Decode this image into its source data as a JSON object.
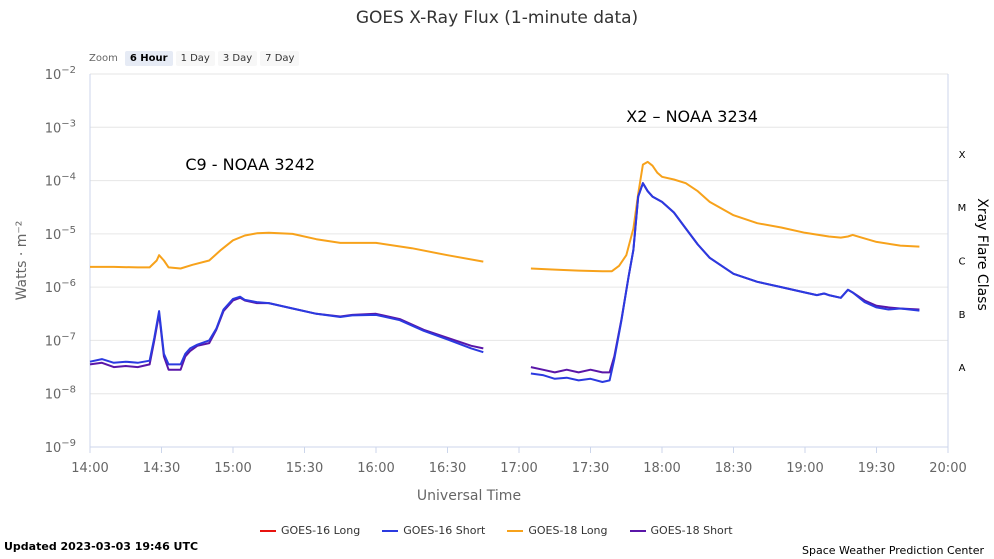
{
  "title": "GOES X-Ray Flux (1-minute data)",
  "zoom": {
    "label": "Zoom",
    "buttons": [
      "6 Hour",
      "1 Day",
      "3 Day",
      "7 Day"
    ],
    "active": "6 Hour"
  },
  "legend": [
    {
      "name": "GOES-16 Long",
      "color": "#e8130f"
    },
    {
      "name": "GOES-16 Short",
      "color": "#2b3ae0"
    },
    {
      "name": "GOES-18 Long",
      "color": "#f7a21b"
    },
    {
      "name": "GOES-18 Short",
      "color": "#5a16a8"
    }
  ],
  "updated": "Updated 2023-03-03 19:46 UTC",
  "credit": "Space Weather Prediction Center",
  "chart_data": {
    "type": "line",
    "title": "GOES X-Ray Flux (1-minute data)",
    "xlabel": "Universal Time",
    "ylabel": "Watts · m⁻²",
    "y2label": "Xray Flare Class",
    "yscale": "log",
    "xlim": [
      "14:00",
      "20:00"
    ],
    "ylim_exp": [
      -9,
      -2
    ],
    "x_ticks": [
      "14:00",
      "14:30",
      "15:00",
      "15:30",
      "16:00",
      "16:30",
      "17:00",
      "17:30",
      "18:00",
      "18:30",
      "19:00",
      "19:30",
      "20:00"
    ],
    "y_ticks": [
      {
        "base": "10",
        "exp": "−2",
        "value_exp": -2
      },
      {
        "base": "10",
        "exp": "−3",
        "value_exp": -3
      },
      {
        "base": "10",
        "exp": "−4",
        "value_exp": -4
      },
      {
        "base": "10",
        "exp": "−5",
        "value_exp": -5
      },
      {
        "base": "10",
        "exp": "−6",
        "value_exp": -6
      },
      {
        "base": "10",
        "exp": "−7",
        "value_exp": -7
      },
      {
        "base": "10",
        "exp": "−8",
        "value_exp": -8
      },
      {
        "base": "10",
        "exp": "−9",
        "value_exp": -9
      }
    ],
    "flare_classes": [
      {
        "label": "X",
        "value_exp": -3.5
      },
      {
        "label": "M",
        "value_exp": -4.5
      },
      {
        "label": "C",
        "value_exp": -5.5
      },
      {
        "label": "B",
        "value_exp": -6.5
      },
      {
        "label": "A",
        "value_exp": -7.5
      }
    ],
    "annotations": [
      {
        "text": "C9 - NOAA 3242",
        "x": "14:40",
        "y_exp": -3.8
      },
      {
        "text": "X2 – NOAA 3234",
        "x": "17:45",
        "y_exp": -2.9
      }
    ],
    "series": [
      {
        "name": "GOES-18 Long",
        "color": "#f7a21b",
        "segments": [
          [
            [
              "14:00",
              -5.62
            ],
            [
              "14:10",
              -5.62
            ],
            [
              "14:20",
              -5.63
            ],
            [
              "14:25",
              -5.63
            ],
            [
              "14:28",
              -5.5
            ],
            [
              "14:29",
              -5.4
            ],
            [
              "14:31",
              -5.5
            ],
            [
              "14:33",
              -5.63
            ],
            [
              "14:38",
              -5.65
            ],
            [
              "14:43",
              -5.58
            ],
            [
              "14:50",
              -5.5
            ],
            [
              "14:55",
              -5.3
            ],
            [
              "15:00",
              -5.12
            ],
            [
              "15:05",
              -5.03
            ],
            [
              "15:10",
              -4.99
            ],
            [
              "15:15",
              -4.98
            ],
            [
              "15:25",
              -5.0
            ],
            [
              "15:35",
              -5.1
            ],
            [
              "15:45",
              -5.17
            ],
            [
              "16:00",
              -5.17
            ],
            [
              "16:15",
              -5.27
            ],
            [
              "16:30",
              -5.4
            ],
            [
              "16:45",
              -5.52
            ]
          ],
          [
            [
              "17:05",
              -5.65
            ],
            [
              "17:15",
              -5.67
            ],
            [
              "17:25",
              -5.69
            ],
            [
              "17:35",
              -5.7
            ],
            [
              "17:39",
              -5.7
            ],
            [
              "17:42",
              -5.6
            ],
            [
              "17:45",
              -5.4
            ],
            [
              "17:48",
              -4.9
            ],
            [
              "17:50",
              -4.25
            ],
            [
              "17:52",
              -3.7
            ],
            [
              "17:54",
              -3.65
            ],
            [
              "17:56",
              -3.72
            ],
            [
              "17:58",
              -3.85
            ],
            [
              "18:00",
              -3.93
            ],
            [
              "18:05",
              -3.98
            ],
            [
              "18:10",
              -4.05
            ],
            [
              "18:15",
              -4.2
            ],
            [
              "18:20",
              -4.4
            ],
            [
              "18:30",
              -4.65
            ],
            [
              "18:40",
              -4.8
            ],
            [
              "18:50",
              -4.88
            ],
            [
              "19:00",
              -4.98
            ],
            [
              "19:10",
              -5.05
            ],
            [
              "19:15",
              -5.07
            ],
            [
              "19:18",
              -5.05
            ],
            [
              "19:20",
              -5.02
            ],
            [
              "19:23",
              -5.06
            ],
            [
              "19:30",
              -5.15
            ],
            [
              "19:40",
              -5.22
            ],
            [
              "19:48",
              -5.24
            ]
          ]
        ]
      },
      {
        "name": "GOES-18 Short",
        "color": "#5a16a8",
        "segments": [
          [
            [
              "14:00",
              -7.45
            ],
            [
              "14:05",
              -7.42
            ],
            [
              "14:10",
              -7.5
            ],
            [
              "14:15",
              -7.48
            ],
            [
              "14:20",
              -7.5
            ],
            [
              "14:25",
              -7.45
            ],
            [
              "14:27",
              -7.0
            ],
            [
              "14:29",
              -6.5
            ],
            [
              "14:31",
              -7.3
            ],
            [
              "14:33",
              -7.55
            ],
            [
              "14:38",
              -7.55
            ],
            [
              "14:40",
              -7.3
            ],
            [
              "14:42",
              -7.2
            ],
            [
              "14:45",
              -7.1
            ],
            [
              "14:50",
              -7.05
            ],
            [
              "14:53",
              -6.8
            ],
            [
              "14:56",
              -6.45
            ],
            [
              "15:00",
              -6.25
            ],
            [
              "15:03",
              -6.2
            ],
            [
              "15:05",
              -6.25
            ],
            [
              "15:10",
              -6.3
            ],
            [
              "15:15",
              -6.3
            ],
            [
              "15:25",
              -6.4
            ],
            [
              "15:35",
              -6.5
            ],
            [
              "15:45",
              -6.55
            ],
            [
              "15:50",
              -6.52
            ],
            [
              "16:00",
              -6.5
            ],
            [
              "16:10",
              -6.6
            ],
            [
              "16:20",
              -6.8
            ],
            [
              "16:30",
              -6.95
            ],
            [
              "16:40",
              -7.1
            ],
            [
              "16:45",
              -7.15
            ]
          ],
          [
            [
              "17:05",
              -7.5
            ],
            [
              "17:10",
              -7.55
            ],
            [
              "17:15",
              -7.6
            ],
            [
              "17:20",
              -7.55
            ],
            [
              "17:25",
              -7.6
            ],
            [
              "17:30",
              -7.55
            ],
            [
              "17:35",
              -7.6
            ],
            [
              "17:38",
              -7.6
            ],
            [
              "17:40",
              -7.3
            ],
            [
              "17:43",
              -6.6
            ],
            [
              "17:46",
              -5.8
            ],
            [
              "17:48",
              -5.3
            ],
            [
              "17:50",
              -4.3
            ],
            [
              "17:52",
              -4.05
            ],
            [
              "17:54",
              -4.2
            ],
            [
              "17:56",
              -4.3
            ],
            [
              "18:00",
              -4.4
            ],
            [
              "18:05",
              -4.6
            ],
            [
              "18:10",
              -4.9
            ],
            [
              "18:15",
              -5.2
            ],
            [
              "18:20",
              -5.45
            ],
            [
              "18:25",
              -5.6
            ],
            [
              "18:30",
              -5.75
            ],
            [
              "18:40",
              -5.9
            ],
            [
              "18:50",
              -6.0
            ],
            [
              "19:00",
              -6.1
            ],
            [
              "19:05",
              -6.15
            ],
            [
              "19:08",
              -6.12
            ],
            [
              "19:10",
              -6.15
            ],
            [
              "19:15",
              -6.2
            ],
            [
              "19:18",
              -6.05
            ],
            [
              "19:20",
              -6.1
            ],
            [
              "19:25",
              -6.25
            ],
            [
              "19:30",
              -6.35
            ],
            [
              "19:35",
              -6.38
            ],
            [
              "19:40",
              -6.4
            ],
            [
              "19:48",
              -6.42
            ]
          ]
        ]
      },
      {
        "name": "GOES-16 Short",
        "color": "#2b3ae0",
        "segments": [
          [
            [
              "14:00",
              -7.4
            ],
            [
              "14:05",
              -7.35
            ],
            [
              "14:10",
              -7.42
            ],
            [
              "14:15",
              -7.4
            ],
            [
              "14:20",
              -7.42
            ],
            [
              "14:25",
              -7.38
            ],
            [
              "14:27",
              -6.95
            ],
            [
              "14:29",
              -6.45
            ],
            [
              "14:31",
              -7.25
            ],
            [
              "14:33",
              -7.45
            ],
            [
              "14:38",
              -7.45
            ],
            [
              "14:40",
              -7.25
            ],
            [
              "14:42",
              -7.15
            ],
            [
              "14:45",
              -7.08
            ],
            [
              "14:50",
              -7.0
            ],
            [
              "14:53",
              -6.78
            ],
            [
              "14:56",
              -6.42
            ],
            [
              "15:00",
              -6.22
            ],
            [
              "15:03",
              -6.18
            ],
            [
              "15:05",
              -6.24
            ],
            [
              "15:10",
              -6.28
            ],
            [
              "15:15",
              -6.3
            ],
            [
              "15:25",
              -6.4
            ],
            [
              "15:35",
              -6.5
            ],
            [
              "15:45",
              -6.56
            ],
            [
              "15:50",
              -6.53
            ],
            [
              "16:00",
              -6.52
            ],
            [
              "16:10",
              -6.62
            ],
            [
              "16:20",
              -6.82
            ],
            [
              "16:30",
              -6.98
            ],
            [
              "16:40",
              -7.15
            ],
            [
              "16:45",
              -7.22
            ]
          ],
          [
            [
              "17:05",
              -7.62
            ],
            [
              "17:10",
              -7.65
            ],
            [
              "17:15",
              -7.72
            ],
            [
              "17:20",
              -7.7
            ],
            [
              "17:25",
              -7.75
            ],
            [
              "17:30",
              -7.72
            ],
            [
              "17:35",
              -7.78
            ],
            [
              "17:38",
              -7.75
            ],
            [
              "17:40",
              -7.35
            ],
            [
              "17:43",
              -6.62
            ],
            [
              "17:46",
              -5.8
            ],
            [
              "17:48",
              -5.3
            ],
            [
              "17:50",
              -4.3
            ],
            [
              "17:52",
              -4.05
            ],
            [
              "17:54",
              -4.2
            ],
            [
              "17:56",
              -4.3
            ],
            [
              "18:00",
              -4.4
            ],
            [
              "18:05",
              -4.6
            ],
            [
              "18:10",
              -4.9
            ],
            [
              "18:15",
              -5.2
            ],
            [
              "18:20",
              -5.45
            ],
            [
              "18:25",
              -5.6
            ],
            [
              "18:30",
              -5.75
            ],
            [
              "18:40",
              -5.9
            ],
            [
              "18:50",
              -6.0
            ],
            [
              "19:00",
              -6.1
            ],
            [
              "19:05",
              -6.15
            ],
            [
              "19:08",
              -6.12
            ],
            [
              "19:10",
              -6.15
            ],
            [
              "19:15",
              -6.2
            ],
            [
              "19:18",
              -6.05
            ],
            [
              "19:20",
              -6.1
            ],
            [
              "19:25",
              -6.28
            ],
            [
              "19:30",
              -6.38
            ],
            [
              "19:35",
              -6.42
            ],
            [
              "19:40",
              -6.4
            ],
            [
              "19:48",
              -6.44
            ]
          ]
        ]
      }
    ]
  }
}
